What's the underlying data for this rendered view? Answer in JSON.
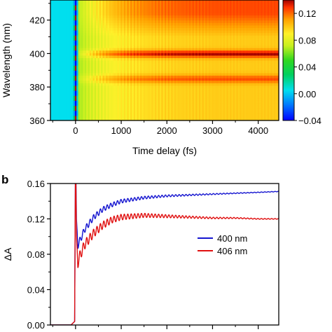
{
  "panels": {
    "b_label": "b"
  },
  "chart_data": [
    {
      "type": "heatmap",
      "xlabel": "Time delay (fs)",
      "ylabel": "Wavelength (nm)",
      "xlim": [
        -550,
        4450
      ],
      "ylim": [
        360,
        432
      ],
      "x_ticks": [
        0,
        1000,
        2000,
        3000,
        4000
      ],
      "x_tick_labels": [
        "0",
        "1000",
        "2000",
        "3000",
        "4000"
      ],
      "y_ticks": [
        360,
        380,
        400,
        420
      ],
      "y_tick_labels": [
        "360",
        "380",
        "400",
        "420"
      ],
      "colorbar": {
        "range": [
          -0.04,
          0.14
        ],
        "ticks": [
          -0.04,
          0.0,
          0.04,
          0.08,
          0.12
        ],
        "tick_labels": [
          "−0.04",
          "0.00",
          "0.04",
          "0.08",
          "0.12"
        ],
        "colormap": [
          "#0000ff",
          "#00a0ff",
          "#00e5ee",
          "#1fd01f",
          "#f5f530",
          "#ffa000",
          "#ff3000",
          "#8b0000"
        ]
      },
      "features": {
        "pre_zero_value": 0.005,
        "time_zero_fs": 0,
        "band_centers_nm": [
          400,
          385
        ],
        "band_peak_values": [
          0.135,
          0.12
        ]
      }
    },
    {
      "type": "line",
      "xlabel": "",
      "ylabel": "ΔA",
      "xlim": [
        -550,
        4450
      ],
      "ylim": [
        0,
        0.16
      ],
      "x_ticks": [
        0,
        1000,
        2000,
        3000,
        4000
      ],
      "y_ticks": [
        0.0,
        0.04,
        0.08,
        0.12,
        0.16
      ],
      "y_tick_labels": [
        "0.00",
        "0.04",
        "0.08",
        "0.12",
        "0.16"
      ],
      "legend_position": "center-right",
      "series": [
        {
          "name": "400 nm",
          "color": "#1515d0",
          "x": [
            -550,
            -100,
            -20,
            0,
            20,
            50,
            100,
            200,
            400,
            600,
            800,
            1000,
            1500,
            2000,
            2500,
            3000,
            3500,
            4000,
            4450
          ],
          "y": [
            0.0,
            0.0,
            0.004,
            0.2,
            0.12,
            0.09,
            0.096,
            0.108,
            0.122,
            0.131,
            0.136,
            0.14,
            0.144,
            0.146,
            0.147,
            0.148,
            0.149,
            0.15,
            0.151
          ],
          "oscillation": {
            "amplitude": 0.004,
            "period_fs": 75
          }
        },
        {
          "name": "406 nm",
          "color": "#e01010",
          "x": [
            -550,
            -100,
            -20,
            0,
            20,
            50,
            100,
            200,
            400,
            600,
            800,
            1000,
            1500,
            2000,
            2500,
            3000,
            3500,
            4000,
            4450
          ],
          "y": [
            0.0,
            0.0,
            0.004,
            0.2,
            0.1,
            0.07,
            0.079,
            0.091,
            0.104,
            0.113,
            0.119,
            0.122,
            0.124,
            0.123,
            0.122,
            0.121,
            0.121,
            0.12,
            0.12
          ],
          "oscillation": {
            "amplitude": 0.006,
            "period_fs": 75
          }
        }
      ]
    }
  ]
}
